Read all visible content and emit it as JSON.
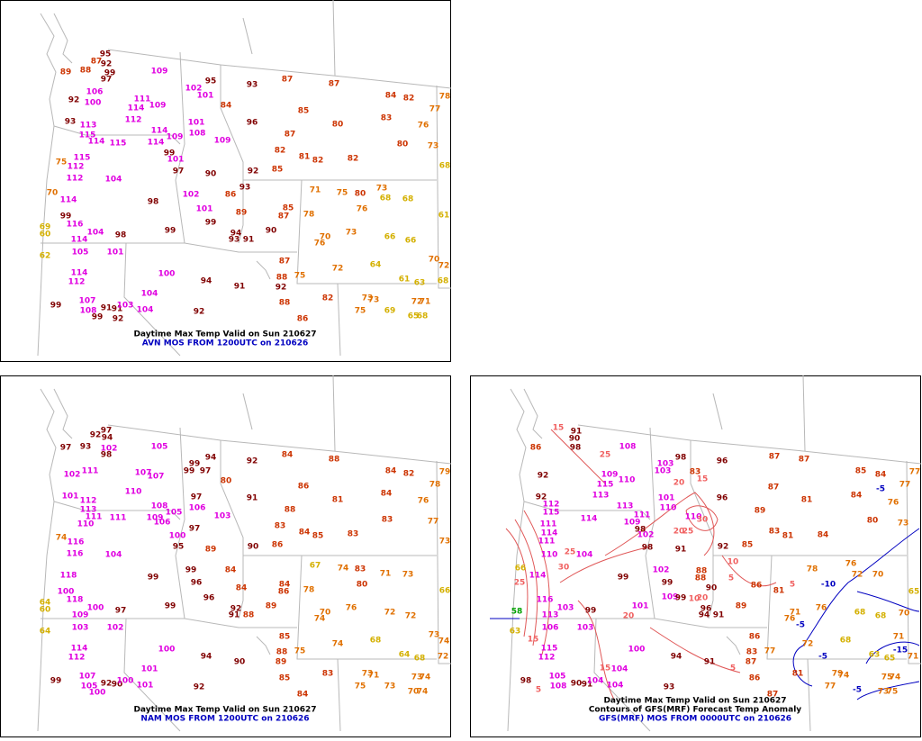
{
  "panels": [
    {
      "captions": [
        "Daytime Max Temp Valid on Sun 210627",
        "AVN MOS FROM 1200UTC on 210626"
      ],
      "temps": [
        89,
        88,
        87,
        95,
        92,
        99,
        97,
        109,
        95,
        93,
        87,
        87,
        84,
        82,
        78,
        92,
        106,
        100,
        111,
        109,
        114,
        102,
        101,
        84,
        96,
        85,
        80,
        83,
        77,
        76,
        93,
        113,
        112,
        101,
        114,
        108,
        109,
        87,
        80,
        73,
        115,
        114,
        115,
        114,
        109,
        99,
        82,
        81,
        82,
        82,
        115,
        75,
        112,
        101,
        97,
        90,
        92,
        85,
        68,
        112,
        104,
        93,
        73,
        71,
        75,
        80,
        68,
        68,
        70,
        114,
        98,
        102,
        86,
        101,
        99,
        89,
        85,
        87,
        78,
        76,
        61,
        99,
        116,
        99,
        94,
        93,
        91,
        90,
        104,
        98,
        70,
        76,
        73,
        66,
        66,
        69,
        60,
        114,
        105,
        101,
        62,
        87,
        70,
        72,
        64,
        72,
        100,
        94,
        91,
        88,
        92,
        75,
        61,
        63,
        68,
        114,
        112,
        104,
        107,
        108,
        91,
        91,
        103,
        99,
        99,
        92,
        104,
        92,
        88,
        82,
        73,
        73,
        72,
        71,
        75,
        69,
        65,
        68,
        86
      ]
    },
    {
      "captions": [
        "Daytime Max Temp Valid on Sun 210627",
        "NAM MOS FROM 1200UTC on 210626"
      ],
      "temps": [
        97,
        94,
        92,
        97,
        93,
        102,
        98,
        105,
        99,
        94,
        92,
        84,
        88,
        84,
        82,
        79,
        78,
        102,
        111,
        107,
        107,
        99,
        97,
        80,
        86,
        110,
        81,
        84,
        76,
        101,
        112,
        97,
        91,
        106,
        88,
        77,
        113,
        111,
        111,
        108,
        105,
        109,
        106,
        103,
        83,
        83,
        110,
        97,
        84,
        85,
        83,
        100,
        73,
        74,
        116,
        95,
        89,
        90,
        86,
        116,
        104,
        84,
        67,
        74,
        83,
        71,
        73,
        118,
        99,
        99,
        96,
        84,
        86,
        78,
        80,
        66,
        100,
        118,
        96,
        84,
        99,
        89,
        92,
        91,
        88,
        100,
        97,
        70,
        74,
        76,
        72,
        72,
        64,
        60,
        109,
        103,
        102,
        64,
        85,
        73,
        74,
        68,
        74,
        100,
        94,
        90,
        88,
        89,
        75,
        64,
        68,
        72,
        114,
        112,
        101,
        107,
        105,
        92,
        90,
        100,
        99,
        100,
        101,
        92,
        85,
        83,
        73,
        71,
        73,
        74,
        75,
        73,
        70,
        74,
        84
      ]
    },
    {
      "captions": [
        "Daytime Max Temp Valid on Sun 210627",
        "Contours of GFS(MRF) Forecast Temp Anomaly",
        "GFS(MRF) MOS FROM 0000UTC on 210626"
      ],
      "temps": [
        91,
        86,
        90,
        98,
        108,
        98,
        96,
        87,
        87,
        85,
        84,
        77,
        92,
        103,
        103,
        109,
        110,
        83,
        115,
        113,
        87,
        81,
        84,
        76,
        77,
        92,
        101,
        110,
        96,
        112,
        115,
        113,
        111,
        109,
        89,
        80,
        73,
        114,
        110,
        98,
        85,
        83,
        81,
        84,
        111,
        114,
        111,
        102,
        98,
        91,
        92,
        110,
        104,
        88,
        78,
        76,
        72,
        70,
        66,
        114,
        99,
        102,
        88,
        86,
        99,
        81,
        109,
        99,
        90,
        101,
        116,
        103,
        99,
        96,
        94,
        91,
        89,
        76,
        71,
        76,
        68,
        68,
        70,
        65,
        113,
        106,
        103,
        63,
        86,
        72,
        68,
        71,
        100,
        94,
        91,
        83,
        87,
        77,
        63,
        65,
        71,
        115,
        112,
        104,
        93,
        86,
        81,
        79,
        74,
        75,
        74,
        77,
        73,
        75,
        87,
        105,
        108,
        90,
        91,
        104,
        98,
        104,
        58
      ],
      "contour_labels": [
        15,
        25,
        20,
        15,
        30,
        25,
        20,
        30,
        10,
        25,
        5,
        20,
        10,
        5,
        20,
        25,
        15,
        15,
        5,
        5,
        -5,
        -10,
        -5,
        -5,
        -15,
        -5
      ]
    }
  ]
}
